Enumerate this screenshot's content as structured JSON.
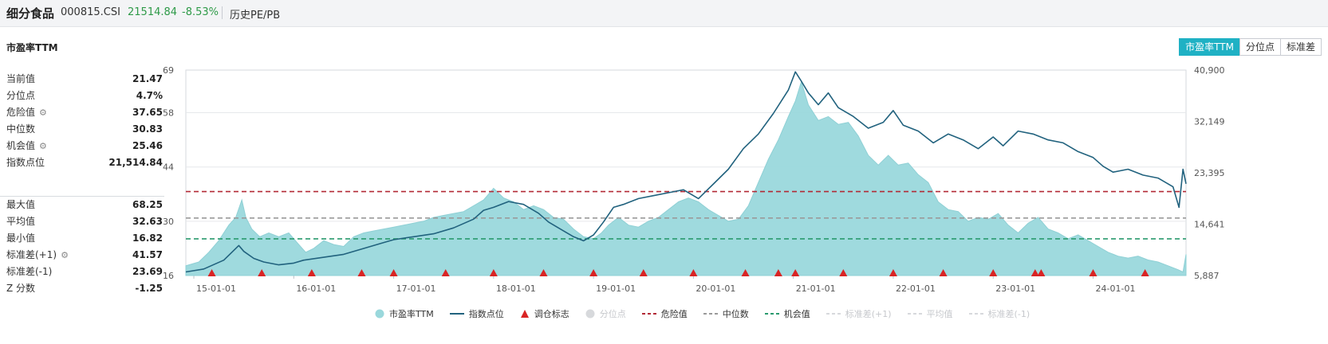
{
  "header": {
    "name": "细分食品",
    "code": "000815.CSI",
    "price": "21514.84",
    "change": "-8.53%",
    "history_label": "历史PE/PB"
  },
  "section_title": "市盈率TTM",
  "buttons": [
    {
      "label": "市盈率TTM",
      "active": true
    },
    {
      "label": "分位点",
      "active": false
    },
    {
      "label": "标准差",
      "active": false
    }
  ],
  "stats_top": [
    {
      "label": "当前值",
      "value": "21.47",
      "gear": false
    },
    {
      "label": "分位点",
      "value": "4.7%",
      "gear": false
    },
    {
      "label": "危险值",
      "value": "37.65",
      "gear": true
    },
    {
      "label": "中位数",
      "value": "30.83",
      "gear": false
    },
    {
      "label": "机会值",
      "value": "25.46",
      "gear": true
    },
    {
      "label": "指数点位",
      "value": "21,514.84",
      "gear": false
    }
  ],
  "stats_bottom": [
    {
      "label": "最大值",
      "value": "68.25",
      "gear": false
    },
    {
      "label": "平均值",
      "value": "32.63",
      "gear": false
    },
    {
      "label": "最小值",
      "value": "16.82",
      "gear": false
    },
    {
      "label": "标准差(+1)",
      "value": "41.57",
      "gear": true
    },
    {
      "label": "标准差(-1)",
      "value": "23.69",
      "gear": false
    },
    {
      "label": "Z 分数",
      "value": "-1.25",
      "gear": false
    }
  ],
  "chart_data": {
    "type": "area",
    "x_range": [
      2014.92,
      2024.93
    ],
    "x_ticks": [
      {
        "x": 2015.0,
        "label": "15-01-01"
      },
      {
        "x": 2016.0,
        "label": "16-01-01"
      },
      {
        "x": 2017.0,
        "label": "17-01-01"
      },
      {
        "x": 2018.0,
        "label": "18-01-01"
      },
      {
        "x": 2019.0,
        "label": "19-01-01"
      },
      {
        "x": 2020.0,
        "label": "20-01-01"
      },
      {
        "x": 2021.0,
        "label": "21-01-01"
      },
      {
        "x": 2022.0,
        "label": "22-01-01"
      },
      {
        "x": 2023.0,
        "label": "23-01-01"
      },
      {
        "x": 2024.0,
        "label": "24-01-01"
      }
    ],
    "y_left": {
      "range": [
        16,
        69
      ],
      "ticks": [
        16,
        30,
        44,
        58,
        69
      ]
    },
    "y_right": {
      "range": [
        5887,
        40900
      ],
      "ticks": [
        "5,887",
        "14,641",
        "23,395",
        "32,149",
        "40,900"
      ]
    },
    "reference_lines": [
      {
        "name": "危险值",
        "value": 37.65,
        "color": "#b22a36"
      },
      {
        "name": "中位数",
        "value": 30.83,
        "color": "#9a9a9a"
      },
      {
        "name": "机会值",
        "value": 25.46,
        "color": "#2a9a6e"
      }
    ],
    "series": [
      {
        "name": "市盈率TTM",
        "axis": "left",
        "color": "#9ad8dc",
        "x": [
          2014.92,
          2015.05,
          2015.15,
          2015.25,
          2015.35,
          2015.42,
          2015.48,
          2015.52,
          2015.58,
          2015.66,
          2015.75,
          2015.85,
          2015.95,
          2016.05,
          2016.12,
          2016.2,
          2016.3,
          2016.4,
          2016.5,
          2016.6,
          2016.7,
          2016.8,
          2016.9,
          2017.0,
          2017.1,
          2017.2,
          2017.3,
          2017.4,
          2017.5,
          2017.6,
          2017.7,
          2017.8,
          2017.9,
          2017.95,
          2018.0,
          2018.1,
          2018.2,
          2018.3,
          2018.4,
          2018.5,
          2018.6,
          2018.7,
          2018.8,
          2018.9,
          2019.0,
          2019.08,
          2019.15,
          2019.25,
          2019.35,
          2019.45,
          2019.55,
          2019.65,
          2019.75,
          2019.85,
          2019.95,
          2020.05,
          2020.15,
          2020.25,
          2020.35,
          2020.45,
          2020.55,
          2020.65,
          2020.75,
          2020.85,
          2020.95,
          2021.02,
          2021.08,
          2021.15,
          2021.25,
          2021.35,
          2021.45,
          2021.55,
          2021.65,
          2021.75,
          2021.85,
          2021.95,
          2022.05,
          2022.15,
          2022.25,
          2022.35,
          2022.45,
          2022.55,
          2022.65,
          2022.75,
          2022.85,
          2022.95,
          2023.05,
          2023.15,
          2023.25,
          2023.35,
          2023.45,
          2023.55,
          2023.65,
          2023.75,
          2023.85,
          2023.95,
          2024.05,
          2024.15,
          2024.25,
          2024.35,
          2024.45,
          2024.55,
          2024.65,
          2024.75,
          2024.85,
          2024.9,
          2024.93
        ],
        "y": [
          18.5,
          19.5,
          22,
          25,
          29,
          31,
          35.5,
          31,
          28,
          26,
          27,
          26,
          27,
          24,
          22,
          23,
          25,
          24,
          23.5,
          26,
          27,
          27.5,
          28,
          28.5,
          29,
          29.5,
          30,
          31,
          31.5,
          32,
          32.5,
          34,
          35.5,
          37,
          38.5,
          36,
          35,
          33,
          34,
          33,
          31,
          30.5,
          28,
          26,
          25.5,
          27,
          29,
          31,
          29,
          28.5,
          30,
          31,
          33,
          35,
          36,
          35,
          33,
          31.5,
          30,
          30.5,
          34,
          40,
          46,
          51,
          57,
          61,
          66,
          60,
          56,
          57,
          55,
          55.5,
          52,
          47,
          44.5,
          47,
          44.5,
          45,
          42,
          40,
          35,
          33,
          32.5,
          30,
          31,
          30.5,
          32,
          29,
          27,
          29.5,
          31,
          28,
          27,
          25.5,
          26.5,
          25,
          23.5,
          22,
          21,
          20.5,
          21,
          20,
          19.5,
          18.5,
          17.5,
          16.9,
          21.47
        ]
      },
      {
        "name": "指数点位",
        "axis": "right",
        "color": "#21627e",
        "x": [
          2014.92,
          2015.1,
          2015.3,
          2015.45,
          2015.5,
          2015.6,
          2015.7,
          2015.85,
          2016.0,
          2016.1,
          2016.3,
          2016.5,
          2016.7,
          2016.9,
          2017.0,
          2017.2,
          2017.4,
          2017.6,
          2017.8,
          2017.9,
          2018.0,
          2018.15,
          2018.3,
          2018.45,
          2018.55,
          2018.7,
          2018.8,
          2018.9,
          2019.0,
          2019.1,
          2019.2,
          2019.3,
          2019.45,
          2019.6,
          2019.75,
          2019.9,
          2020.05,
          2020.2,
          2020.35,
          2020.5,
          2020.65,
          2020.8,
          2020.95,
          2021.02,
          2021.08,
          2021.15,
          2021.25,
          2021.35,
          2021.45,
          2021.6,
          2021.75,
          2021.9,
          2022.0,
          2022.1,
          2022.25,
          2022.4,
          2022.55,
          2022.7,
          2022.85,
          2023.0,
          2023.1,
          2023.25,
          2023.4,
          2023.55,
          2023.7,
          2023.85,
          2024.0,
          2024.1,
          2024.2,
          2024.35,
          2024.5,
          2024.65,
          2024.8,
          2024.86,
          2024.9,
          2024.93
        ],
        "y": [
          6500,
          7000,
          8500,
          11000,
          10000,
          8800,
          8200,
          7700,
          8000,
          8500,
          9000,
          9500,
          10500,
          11500,
          12000,
          12500,
          13000,
          14000,
          15500,
          17000,
          17500,
          18500,
          18000,
          16500,
          15000,
          13500,
          12500,
          11800,
          12800,
          15000,
          17500,
          18000,
          19000,
          19500,
          20000,
          20500,
          19000,
          21500,
          24000,
          27500,
          30000,
          33500,
          37500,
          40600,
          39000,
          37000,
          35000,
          37000,
          34500,
          33000,
          31000,
          32000,
          34000,
          31500,
          30500,
          28500,
          30000,
          29000,
          27500,
          29500,
          28000,
          30500,
          30000,
          29000,
          28500,
          27000,
          26000,
          24500,
          23500,
          24000,
          23000,
          22500,
          21000,
          17500,
          24000,
          21514
        ]
      },
      {
        "name": "调仓标志",
        "axis": "marker",
        "x": [
          2015.18,
          2015.68,
          2016.18,
          2016.68,
          2017.0,
          2017.52,
          2018.0,
          2018.5,
          2019.0,
          2019.5,
          2020.0,
          2020.52,
          2020.85,
          2021.02,
          2021.5,
          2022.0,
          2022.5,
          2023.0,
          2023.42,
          2023.48,
          2024.0,
          2024.52
        ]
      },
      {
        "name": "分位点",
        "color": "#d7d9dc",
        "hidden": true
      },
      {
        "name": "危险值",
        "color": "#b22a36"
      },
      {
        "name": "中位数",
        "color": "#9a9a9a"
      },
      {
        "name": "机会值",
        "color": "#2a9a6e"
      },
      {
        "name": "标准差(+1)",
        "color": "#d7d9dc",
        "hidden": true
      },
      {
        "name": "平均值",
        "color": "#d7d9dc",
        "hidden": true
      },
      {
        "name": "标准差(-1)",
        "color": "#d7d9dc",
        "hidden": true
      }
    ]
  }
}
